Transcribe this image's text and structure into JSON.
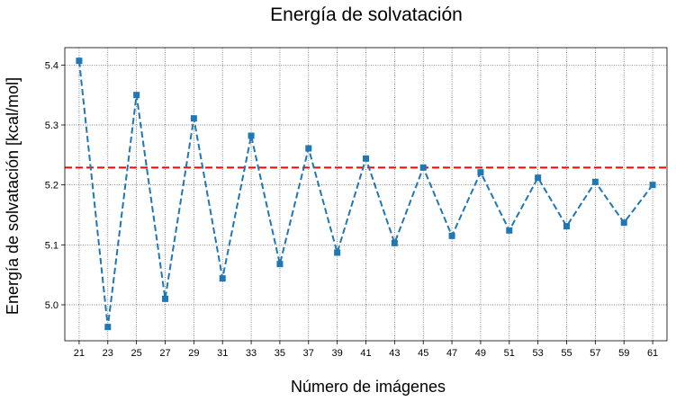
{
  "chart_data": {
    "type": "line",
    "title": "Energía de solvatación",
    "xlabel": "Número de imágenes",
    "ylabel": "Energía de solvatación [kcal/mol]",
    "x": [
      21,
      23,
      25,
      27,
      29,
      31,
      33,
      35,
      37,
      39,
      41,
      43,
      45,
      47,
      49,
      51,
      53,
      55,
      57,
      59,
      61
    ],
    "series": [
      {
        "values": [
          5.407,
          4.963,
          5.35,
          5.01,
          5.311,
          5.044,
          5.282,
          5.068,
          5.261,
          5.087,
          5.244,
          5.103,
          5.229,
          5.115,
          5.221,
          5.124,
          5.212,
          5.131,
          5.205,
          5.137,
          5.2
        ],
        "color": "#1f77b4",
        "line_style": "dashed",
        "marker": "square"
      }
    ],
    "reference_line": {
      "y": 5.229,
      "color": "#ff0000",
      "line_style": "dashed"
    },
    "xticks": [
      "21",
      "23",
      "25",
      "27",
      "29",
      "31",
      "33",
      "35",
      "37",
      "39",
      "41",
      "43",
      "45",
      "47",
      "49",
      "51",
      "53",
      "55",
      "57",
      "59",
      "61"
    ],
    "yticks": [
      "5.0",
      "5.1",
      "5.2",
      "5.3",
      "5.4"
    ],
    "xlim": [
      20.0,
      62.0
    ],
    "ylim": [
      4.94,
      5.429
    ],
    "grid": true
  }
}
